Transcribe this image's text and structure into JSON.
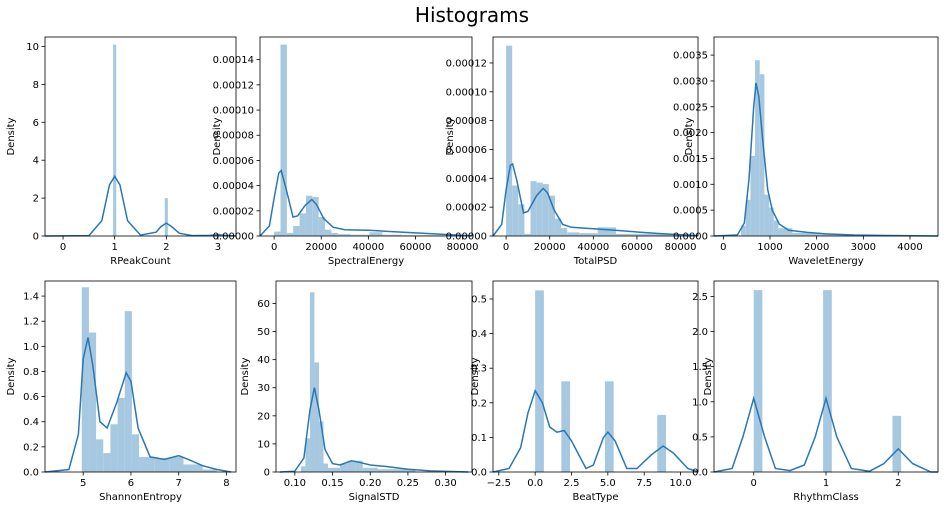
{
  "figure": {
    "title": "Histograms",
    "bar_color": "#a6c8e0",
    "kde_color": "#2a77b4",
    "ylabel": "Density"
  },
  "chart_data": [
    {
      "type": "bar",
      "title": "",
      "xlabel": "RPeakCount",
      "ylabel": "Density",
      "xlim": [
        -0.35,
        3.35
      ],
      "ylim": [
        0,
        10.5
      ],
      "xticks": [
        0,
        1,
        2,
        3
      ],
      "xtick_labels": [
        "0",
        "1",
        "2",
        "3"
      ],
      "yticks": [
        0,
        2,
        4,
        6,
        8,
        10
      ],
      "ytick_labels": [
        "0",
        "2",
        "4",
        "6",
        "8",
        "10"
      ],
      "bins": [
        [
          0.97,
          1.03,
          10.1
        ],
        [
          1.97,
          2.03,
          2.0
        ],
        [
          2.97,
          3.03,
          0.15
        ]
      ],
      "kde": [
        [
          -0.35,
          0
        ],
        [
          0.5,
          0.02
        ],
        [
          0.75,
          0.8
        ],
        [
          0.9,
          2.7
        ],
        [
          1.0,
          3.15
        ],
        [
          1.1,
          2.7
        ],
        [
          1.25,
          0.8
        ],
        [
          1.5,
          0.05
        ],
        [
          1.8,
          0.2
        ],
        [
          1.9,
          0.5
        ],
        [
          2.0,
          0.68
        ],
        [
          2.1,
          0.5
        ],
        [
          2.25,
          0.15
        ],
        [
          2.5,
          0.02
        ],
        [
          2.85,
          0.03
        ],
        [
          3.0,
          0.07
        ],
        [
          3.15,
          0.03
        ],
        [
          3.35,
          0
        ]
      ]
    },
    {
      "type": "bar",
      "title": "",
      "xlabel": "SpectralEnergy",
      "ylabel": "Density",
      "xlim": [
        -6000,
        84000
      ],
      "ylim": [
        0,
        0.000158
      ],
      "xticks": [
        0,
        20000,
        40000,
        60000,
        80000
      ],
      "xtick_labels": [
        "0",
        "20000",
        "40000",
        "60000",
        "80000"
      ],
      "yticks": [
        0,
        2e-05,
        4e-05,
        6e-05,
        8e-05,
        0.0001,
        0.00012,
        0.00014
      ],
      "ytick_labels": [
        "0.00000",
        "0.00002",
        "0.00004",
        "0.00006",
        "0.00008",
        "0.00010",
        "0.00012",
        "0.00014"
      ],
      "bins": [
        [
          0,
          2700,
          3.5e-06
        ],
        [
          2700,
          5400,
          0.000152
        ],
        [
          5400,
          8100,
          2.5e-06
        ],
        [
          8100,
          10800,
          8e-06
        ],
        [
          10800,
          13500,
          1.8e-05
        ],
        [
          13500,
          16200,
          3.2e-05
        ],
        [
          16200,
          18900,
          3.1e-05
        ],
        [
          18900,
          21600,
          1.5e-05
        ],
        [
          21600,
          24300,
          5e-06
        ],
        [
          24300,
          27000,
          2.5e-06
        ],
        [
          27000,
          32400,
          1.5e-06
        ],
        [
          32400,
          40500,
          1e-06
        ],
        [
          40500,
          45900,
          3e-06
        ],
        [
          45900,
          54000,
          1e-06
        ],
        [
          54000,
          81000,
          6e-07
        ]
      ],
      "kde": [
        [
          -6000,
          0
        ],
        [
          -2000,
          8e-06
        ],
        [
          0,
          3e-05
        ],
        [
          2000,
          5e-05
        ],
        [
          3000,
          5.2e-05
        ],
        [
          5000,
          3.8e-05
        ],
        [
          8000,
          1.5e-05
        ],
        [
          10000,
          1.6e-05
        ],
        [
          13000,
          2.4e-05
        ],
        [
          16000,
          2.9e-05
        ],
        [
          18000,
          2.5e-05
        ],
        [
          21000,
          1.4e-05
        ],
        [
          25000,
          7e-06
        ],
        [
          30000,
          5e-06
        ],
        [
          40000,
          4.5e-06
        ],
        [
          50000,
          3.5e-06
        ],
        [
          60000,
          2.5e-06
        ],
        [
          70000,
          1.5e-06
        ],
        [
          80000,
          5e-07
        ],
        [
          84000,
          2e-07
        ]
      ]
    },
    {
      "type": "bar",
      "title": "",
      "xlabel": "TotalPSD",
      "ylabel": "Density",
      "xlim": [
        -6000,
        88000
      ],
      "ylim": [
        0,
        0.000138
      ],
      "xticks": [
        0,
        20000,
        40000,
        60000,
        80000
      ],
      "xtick_labels": [
        "0",
        "20000",
        "40000",
        "60000",
        "80000"
      ],
      "yticks": [
        0,
        2e-05,
        4e-05,
        6e-05,
        8e-05,
        0.0001,
        0.00012
      ],
      "ytick_labels": [
        "0.00000",
        "0.00002",
        "0.00004",
        "0.00006",
        "0.00008",
        "0.00010",
        "0.00012"
      ],
      "bins": [
        [
          0,
          2800,
          0.000132
        ],
        [
          2800,
          5600,
          3.5e-05
        ],
        [
          5600,
          8400,
          2.2e-05
        ],
        [
          8400,
          11200,
          1.5e-06
        ],
        [
          11200,
          14000,
          3.8e-05
        ],
        [
          14000,
          16800,
          3.7e-05
        ],
        [
          16800,
          19600,
          3.6e-05
        ],
        [
          19600,
          22400,
          2.8e-05
        ],
        [
          22400,
          25200,
          1.2e-05
        ],
        [
          25200,
          28000,
          5.5e-06
        ],
        [
          28000,
          33600,
          2.5e-06
        ],
        [
          33600,
          42000,
          2e-06
        ],
        [
          42000,
          50400,
          6e-06
        ],
        [
          50400,
          84000,
          1.5e-06
        ]
      ],
      "kde": [
        [
          -6000,
          0
        ],
        [
          -2000,
          8e-06
        ],
        [
          0,
          3.2e-05
        ],
        [
          2000,
          4.9e-05
        ],
        [
          3000,
          5e-05
        ],
        [
          5000,
          3.8e-05
        ],
        [
          8000,
          1.6e-05
        ],
        [
          10000,
          1.7e-05
        ],
        [
          14000,
          2.8e-05
        ],
        [
          17000,
          3.3e-05
        ],
        [
          19000,
          3e-05
        ],
        [
          22000,
          1.8e-05
        ],
        [
          26000,
          8e-06
        ],
        [
          30000,
          6e-06
        ],
        [
          40000,
          5e-06
        ],
        [
          50000,
          4e-06
        ],
        [
          60000,
          2.8e-06
        ],
        [
          70000,
          1.7e-06
        ],
        [
          80000,
          8e-07
        ],
        [
          88000,
          3e-07
        ]
      ]
    },
    {
      "type": "bar",
      "title": "",
      "xlabel": "WaveletEnergy",
      "ylabel": "Density",
      "xlim": [
        -200,
        4600
      ],
      "ylim": [
        0,
        0.00385
      ],
      "xticks": [
        0,
        1000,
        2000,
        3000,
        4000
      ],
      "xtick_labels": [
        "0",
        "1000",
        "2000",
        "3000",
        "4000"
      ],
      "yticks": [
        0,
        0.0005,
        0.001,
        0.0015,
        0.002,
        0.0025,
        0.003,
        0.0035
      ],
      "ytick_labels": [
        "0.0000",
        "0.0005",
        "0.0010",
        "0.0015",
        "0.0020",
        "0.0025",
        "0.0030",
        "0.0035"
      ],
      "bins": [
        [
          380,
          480,
          0.0002
        ],
        [
          480,
          580,
          0.0007
        ],
        [
          580,
          680,
          0.00155
        ],
        [
          680,
          780,
          0.0034
        ],
        [
          780,
          880,
          0.00313
        ],
        [
          880,
          980,
          0.0008
        ],
        [
          980,
          1080,
          0.00055
        ],
        [
          1080,
          1180,
          0.0003
        ],
        [
          1180,
          1480,
          0.00015
        ],
        [
          1480,
          2080,
          6e-05
        ],
        [
          2080,
          2680,
          3e-05
        ]
      ],
      "kde": [
        [
          -200,
          0
        ],
        [
          300,
          2e-05
        ],
        [
          450,
          0.00025
        ],
        [
          550,
          0.0011
        ],
        [
          650,
          0.0025
        ],
        [
          700,
          0.00296
        ],
        [
          760,
          0.0027
        ],
        [
          850,
          0.0018
        ],
        [
          950,
          0.0009
        ],
        [
          1050,
          0.0005
        ],
        [
          1200,
          0.00023
        ],
        [
          1400,
          0.00011
        ],
        [
          1800,
          7e-05
        ],
        [
          2200,
          4e-05
        ],
        [
          2800,
          2e-05
        ],
        [
          3500,
          1e-05
        ],
        [
          4600,
          0
        ]
      ]
    },
    {
      "type": "bar",
      "title": "",
      "xlabel": "ShannonEntropy",
      "ylabel": "Density",
      "xlim": [
        4.2,
        8.2
      ],
      "ylim": [
        0,
        1.52
      ],
      "xticks": [
        5,
        6,
        7,
        8
      ],
      "xtick_labels": [
        "5",
        "6",
        "7",
        "8"
      ],
      "yticks": [
        0,
        0.2,
        0.4,
        0.6,
        0.8,
        1.0,
        1.2,
        1.4
      ],
      "ytick_labels": [
        "0.0",
        "0.2",
        "0.4",
        "0.6",
        "0.8",
        "1.0",
        "1.2",
        "1.4"
      ],
      "bins": [
        [
          4.97,
          5.12,
          1.47
        ],
        [
          5.12,
          5.27,
          1.11
        ],
        [
          5.27,
          5.42,
          0.26
        ],
        [
          5.42,
          5.57,
          0.15
        ],
        [
          5.57,
          5.72,
          0.38
        ],
        [
          5.72,
          5.87,
          0.59
        ],
        [
          5.87,
          6.02,
          1.28
        ],
        [
          6.02,
          6.17,
          0.3
        ],
        [
          6.17,
          6.5,
          0.12
        ],
        [
          6.5,
          6.8,
          0.11
        ],
        [
          6.8,
          7.1,
          0.12
        ],
        [
          7.1,
          7.5,
          0.06
        ],
        [
          7.5,
          7.8,
          0.02
        ]
      ],
      "kde": [
        [
          4.2,
          0
        ],
        [
          4.7,
          0.02
        ],
        [
          4.9,
          0.3
        ],
        [
          5.0,
          0.9
        ],
        [
          5.1,
          1.07
        ],
        [
          5.2,
          0.85
        ],
        [
          5.35,
          0.4
        ],
        [
          5.5,
          0.35
        ],
        [
          5.7,
          0.55
        ],
        [
          5.9,
          0.79
        ],
        [
          6.0,
          0.72
        ],
        [
          6.15,
          0.35
        ],
        [
          6.4,
          0.12
        ],
        [
          6.7,
          0.1
        ],
        [
          7.0,
          0.13
        ],
        [
          7.2,
          0.1
        ],
        [
          7.5,
          0.05
        ],
        [
          7.8,
          0.02
        ],
        [
          8.1,
          0
        ]
      ]
    },
    {
      "type": "bar",
      "title": "",
      "xlabel": "SignalSTD",
      "ylabel": "Density",
      "xlim": [
        0.075,
        0.335
      ],
      "ylim": [
        0,
        68
      ],
      "xticks": [
        0.1,
        0.15,
        0.2,
        0.25,
        0.3
      ],
      "xtick_labels": [
        "0.10",
        "0.15",
        "0.20",
        "0.25",
        "0.30"
      ],
      "yticks": [
        0,
        10,
        20,
        30,
        40,
        50,
        60
      ],
      "ytick_labels": [
        "0",
        "10",
        "20",
        "30",
        "40",
        "50",
        "60"
      ],
      "bins": [
        [
          0.108,
          0.114,
          2
        ],
        [
          0.114,
          0.12,
          12
        ],
        [
          0.12,
          0.126,
          64
        ],
        [
          0.126,
          0.132,
          39
        ],
        [
          0.132,
          0.138,
          18
        ],
        [
          0.138,
          0.144,
          3
        ],
        [
          0.144,
          0.16,
          1.5
        ],
        [
          0.16,
          0.17,
          3
        ],
        [
          0.17,
          0.18,
          4
        ],
        [
          0.18,
          0.19,
          4
        ],
        [
          0.19,
          0.21,
          1.5
        ],
        [
          0.21,
          0.26,
          1
        ]
      ],
      "kde": [
        [
          0.08,
          0
        ],
        [
          0.1,
          0.3
        ],
        [
          0.112,
          5
        ],
        [
          0.12,
          22
        ],
        [
          0.126,
          30
        ],
        [
          0.132,
          22
        ],
        [
          0.14,
          8
        ],
        [
          0.15,
          3
        ],
        [
          0.16,
          2.5
        ],
        [
          0.175,
          4
        ],
        [
          0.185,
          3.5
        ],
        [
          0.2,
          2.5
        ],
        [
          0.22,
          2
        ],
        [
          0.25,
          1
        ],
        [
          0.28,
          0.4
        ],
        [
          0.33,
          0
        ]
      ]
    },
    {
      "type": "bar",
      "title": "",
      "xlabel": "BeatType",
      "ylabel": "Density",
      "xlim": [
        -2.9,
        11.2
      ],
      "ylim": [
        0,
        0.552
      ],
      "xticks": [
        -2.5,
        0.0,
        2.5,
        5.0,
        7.5,
        10.0
      ],
      "xtick_labels": [
        "−2.5",
        "0.0",
        "2.5",
        "5.0",
        "7.5",
        "10.0"
      ],
      "yticks": [
        0,
        0.1,
        0.2,
        0.3,
        0.4,
        0.5
      ],
      "ytick_labels": [
        "0.0",
        "0.1",
        "0.2",
        "0.3",
        "0.4",
        "0.5"
      ],
      "bins": [
        [
          0,
          0.6,
          0.525
        ],
        [
          1.8,
          2.4,
          0.262
        ],
        [
          4.8,
          5.4,
          0.262
        ],
        [
          8.4,
          9.0,
          0.165
        ]
      ],
      "kde": [
        [
          -2.9,
          0
        ],
        [
          -1.8,
          0.01
        ],
        [
          -1,
          0.07
        ],
        [
          -0.5,
          0.17
        ],
        [
          0,
          0.235
        ],
        [
          0.5,
          0.2
        ],
        [
          1.0,
          0.13
        ],
        [
          1.5,
          0.115
        ],
        [
          2.0,
          0.12
        ],
        [
          2.5,
          0.09
        ],
        [
          3.5,
          0.01
        ],
        [
          4.0,
          0.02
        ],
        [
          4.7,
          0.1
        ],
        [
          5.0,
          0.115
        ],
        [
          5.5,
          0.09
        ],
        [
          6.3,
          0.01
        ],
        [
          7.0,
          0.01
        ],
        [
          8.0,
          0.05
        ],
        [
          8.8,
          0.075
        ],
        [
          9.5,
          0.055
        ],
        [
          10.5,
          0.01
        ],
        [
          11.2,
          0
        ]
      ]
    },
    {
      "type": "bar",
      "title": "",
      "xlabel": "RhythmClass",
      "ylabel": "Density",
      "xlim": [
        -0.55,
        2.55
      ],
      "ylim": [
        0,
        2.72
      ],
      "xticks": [
        0,
        1,
        2
      ],
      "xtick_labels": [
        "0",
        "1",
        "2"
      ],
      "yticks": [
        0,
        0.5,
        1.0,
        1.5,
        2.0,
        2.5
      ],
      "ytick_labels": [
        "0.0",
        "0.5",
        "1.0",
        "1.5",
        "2.0",
        "2.5"
      ],
      "bins": [
        [
          0,
          0.12,
          2.59
        ],
        [
          0.96,
          1.08,
          2.59
        ],
        [
          1.92,
          2.04,
          0.8
        ]
      ],
      "kde": [
        [
          -0.55,
          0
        ],
        [
          -0.3,
          0.05
        ],
        [
          -0.15,
          0.5
        ],
        [
          0,
          1.05
        ],
        [
          0.15,
          0.5
        ],
        [
          0.3,
          0.05
        ],
        [
          0.5,
          0.02
        ],
        [
          0.7,
          0.1
        ],
        [
          0.85,
          0.5
        ],
        [
          1.0,
          1.05
        ],
        [
          1.15,
          0.5
        ],
        [
          1.35,
          0.05
        ],
        [
          1.6,
          0.01
        ],
        [
          1.8,
          0.12
        ],
        [
          2.0,
          0.33
        ],
        [
          2.2,
          0.12
        ],
        [
          2.45,
          0
        ],
        [
          2.55,
          0
        ]
      ]
    }
  ]
}
